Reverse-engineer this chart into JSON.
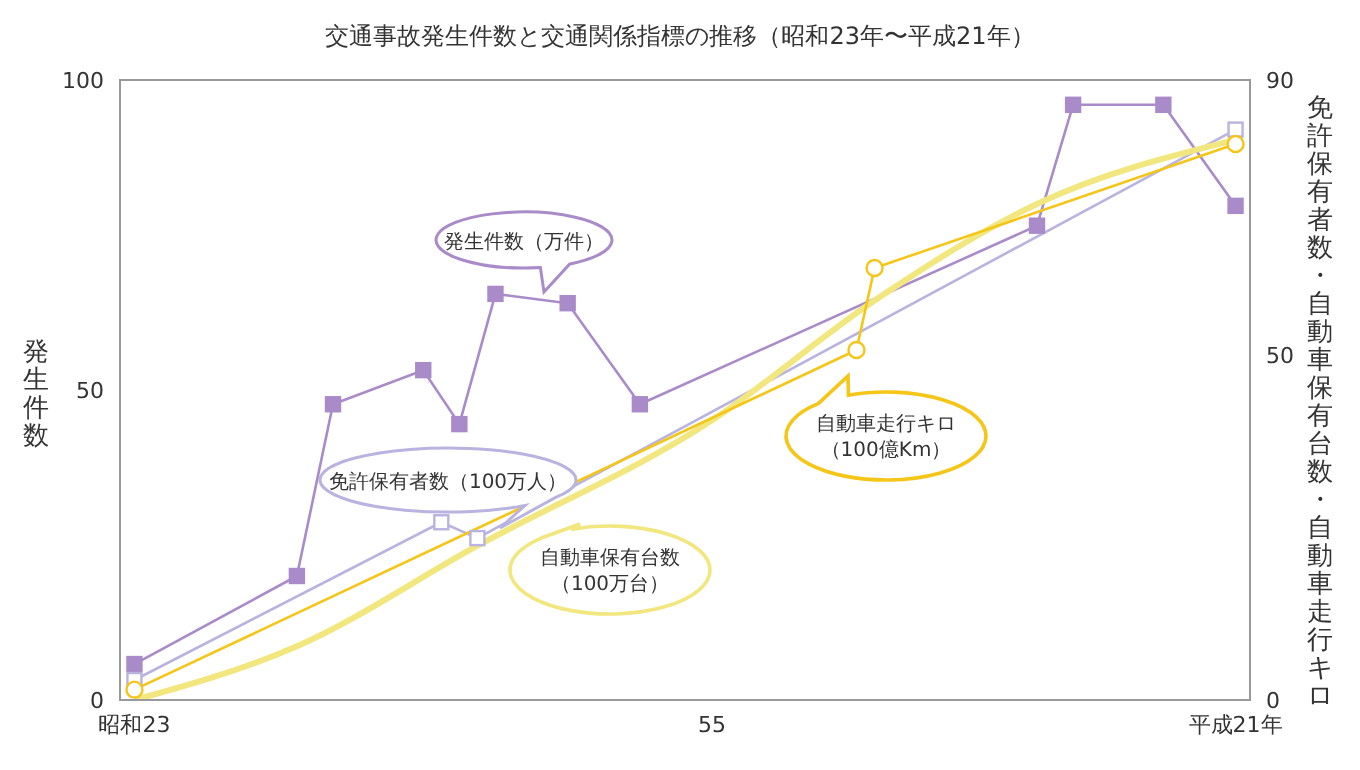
{
  "chart_data": {
    "type": "line",
    "title": "交通事故発生件数と交通関係指標の推移（昭和23年〜平成21年）",
    "ylabel": "発生件数",
    "y2label": "免許保有者数・自動車保有台数・自動車走行キロ",
    "categories": [
      "昭和23",
      null,
      null,
      null,
      null,
      null,
      null,
      null,
      null,
      null,
      null,
      null,
      null,
      null,
      null,
      null,
      null,
      null,
      null,
      null,
      null,
      null,
      null,
      null,
      null,
      null,
      null,
      null,
      null,
      null,
      null,
      null,
      "55",
      null,
      null,
      null,
      null,
      null,
      null,
      null,
      null,
      null,
      null,
      null,
      null,
      null,
      null,
      null,
      null,
      null,
      null,
      null,
      null,
      null,
      null,
      null,
      null,
      null,
      null,
      null,
      null,
      "平成21年"
    ],
    "ylim": [
      0,
      100
    ],
    "yticks": [
      0,
      50,
      100
    ],
    "y2lim": [
      0,
      90
    ],
    "y2ticks": [
      0,
      50,
      90
    ],
    "series": [
      {
        "name": "発生件数（万件）",
        "color": "#a98bc9",
        "marker": "square",
        "values": [
          5.8,
          null,
          null,
          null,
          null,
          null,
          null,
          null,
          null,
          20,
          null,
          47.7,
          null,
          null,
          null,
          null,
          53.2,
          null,
          44.5,
          null,
          65.5,
          null,
          null,
          null,
          64,
          null,
          null,
          null,
          47.7,
          null,
          null,
          null,
          null,
          null,
          null,
          null,
          null,
          null,
          null,
          null,
          null,
          null,
          null,
          null,
          null,
          null,
          null,
          null,
          null,
          null,
          76.5,
          null,
          96,
          null,
          null,
          null,
          null,
          96,
          null,
          null,
          null,
          79.7
        ]
      },
      {
        "name": "免許保有者数（100万人）",
        "color": "#b9b3e0",
        "marker": "square",
        "axis": "y2",
        "values": [
          2.9,
          null,
          null,
          null,
          null,
          null,
          null,
          null,
          null,
          null,
          null,
          null,
          null,
          null,
          null,
          null,
          null,
          25.8,
          null,
          23.5,
          null,
          null,
          null,
          null,
          null,
          null,
          null,
          null,
          null,
          null,
          null,
          null,
          null,
          null,
          null,
          null,
          null,
          null,
          null,
          null,
          null,
          null,
          null,
          null,
          null,
          null,
          null,
          null,
          null,
          null,
          null,
          null,
          null,
          null,
          null,
          null,
          null,
          null,
          null,
          null,
          null,
          82.8
        ]
      },
      {
        "name": "自動車保有台数（100万台）",
        "color": "#f1e77e",
        "marker": "none",
        "axis": "y2",
        "values": [
          0,
          null,
          null,
          null,
          null,
          null,
          null,
          null,
          null,
          7.8,
          null,
          null,
          null,
          null,
          null,
          null,
          null,
          null,
          null,
          22.4,
          null,
          null,
          null,
          null,
          null,
          null,
          null,
          null,
          null,
          null,
          null,
          null,
          40.6,
          null,
          null,
          null,
          null,
          null,
          null,
          null,
          null,
          58,
          null,
          null,
          null,
          null,
          null,
          null,
          null,
          null,
          72,
          null,
          null,
          null,
          null,
          null,
          null,
          null,
          null,
          null,
          null,
          81.3
        ]
      },
      {
        "name": "自動車走行キロ（100億Km）",
        "color": "#f5c518",
        "marker": "circle",
        "axis": "y2",
        "values": [
          1.5,
          null,
          null,
          null,
          null,
          null,
          null,
          null,
          null,
          null,
          null,
          null,
          null,
          null,
          null,
          null,
          null,
          null,
          null,
          null,
          null,
          null,
          null,
          null,
          null,
          null,
          null,
          null,
          null,
          null,
          null,
          null,
          null,
          null,
          null,
          null,
          null,
          null,
          null,
          null,
          50.8,
          62.7,
          null,
          null,
          null,
          null,
          null,
          null,
          null,
          null,
          null,
          null,
          null,
          null,
          null,
          null,
          null,
          null,
          null,
          null,
          null,
          80.7
        ]
      }
    ]
  }
}
